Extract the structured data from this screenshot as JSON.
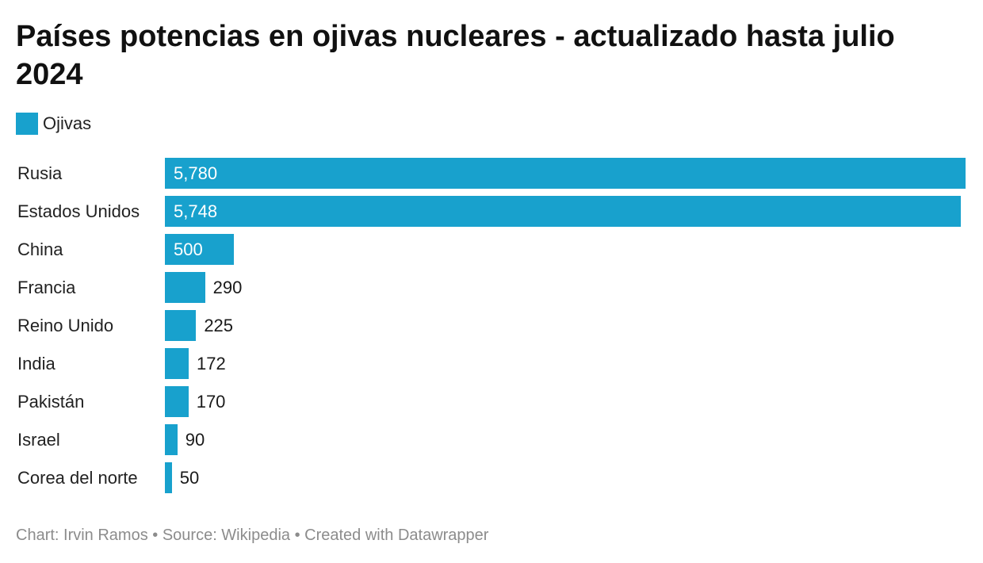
{
  "chart_data": {
    "type": "bar",
    "orientation": "horizontal",
    "title": "Países potencias en ojivas nucleares - actualizado hasta julio 2024",
    "categories": [
      "Rusia",
      "Estados Unidos",
      "China",
      "Francia",
      "Reino Unido",
      "India",
      "Pakistán",
      "Israel",
      "Corea del norte"
    ],
    "series": [
      {
        "name": "Ojivas",
        "values": [
          5780,
          5748,
          500,
          290,
          225,
          172,
          170,
          90,
          50
        ],
        "value_labels": [
          "5,780",
          "5,748",
          "500",
          "290",
          "225",
          "172",
          "170",
          "90",
          "50"
        ],
        "color": "#18a1cd"
      }
    ],
    "xlim": [
      0,
      5780
    ],
    "grid": false,
    "legend": "top-left"
  },
  "footer": {
    "text": "Chart: Irvin Ramos • Source: Wikipedia • Created with Datawrapper"
  },
  "colors": {
    "bar": "#18a1cd",
    "label_inside": "#ffffff",
    "label_outside": "#1a1a1a",
    "footer": "#8c8c8c"
  }
}
